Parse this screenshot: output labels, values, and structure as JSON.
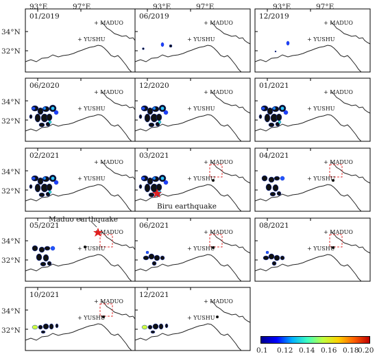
{
  "axes": {
    "top_ticks": [
      "93°E",
      "97°E"
    ],
    "left_ticks": [
      "34°N",
      "32°N"
    ]
  },
  "places": {
    "maduo": "+ MADUO",
    "yushu": "+ YUSHU"
  },
  "panels": [
    {
      "date": "01/2019"
    },
    {
      "date": "06/2019"
    },
    {
      "date": "12/2019"
    },
    {
      "date": "06/2020"
    },
    {
      "date": "12/2020"
    },
    {
      "date": "01/2021"
    },
    {
      "date": "02/2021"
    },
    {
      "date": "03/2021"
    },
    {
      "date": "04/2021"
    },
    {
      "date": "05/2021"
    },
    {
      "date": "06/2021"
    },
    {
      "date": "08/2021"
    },
    {
      "date": "10/2021"
    },
    {
      "date": "12/2021"
    }
  ],
  "annotations": {
    "biru": "Biru earthquake",
    "maduo": "Maduo earthquake"
  },
  "colorbar": {
    "ticks": [
      "0.1",
      "0.12",
      "0.14",
      "0.16",
      "0.18",
      "0.20"
    ],
    "colors": [
      "#00008f",
      "#0000ff",
      "#00b0ff",
      "#40ffc0",
      "#c0ff40",
      "#ffd000",
      "#ff6000",
      "#c00000"
    ]
  }
}
